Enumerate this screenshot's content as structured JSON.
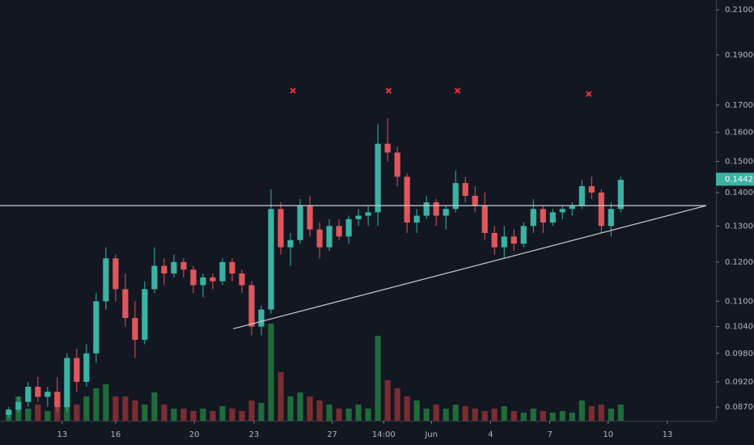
{
  "chart_data": {
    "type": "candlestick",
    "log_scale": true,
    "up_color": "#3bb3a4",
    "down_color": "#e0565c",
    "volume_up_color": "#1f6b3a",
    "volume_down_color": "#7a2d31",
    "line_color": "#c9ccd3",
    "marker_color": "#f0303a",
    "xlim": [
      -0.9,
      72.8
    ],
    "ylim": [
      0.0844,
      0.2146
    ],
    "xticks": [
      {
        "value": 5.5,
        "label": "13"
      },
      {
        "value": 11.0,
        "label": "16"
      },
      {
        "value": 19.1,
        "label": "20"
      },
      {
        "value": 25.25,
        "label": "23"
      },
      {
        "value": 33.3,
        "label": "27"
      },
      {
        "value": 38.6,
        "label": "14:00"
      },
      {
        "value": 43.5,
        "label": "Jun"
      },
      {
        "value": 49.6,
        "label": "4"
      },
      {
        "value": 55.7,
        "label": "7"
      },
      {
        "value": 61.7,
        "label": "10"
      },
      {
        "value": 67.8,
        "label": "13"
      }
    ],
    "yticks": [
      {
        "value": 0.21,
        "label": "0.21000"
      },
      {
        "value": 0.19,
        "label": "0.19000"
      },
      {
        "value": 0.17,
        "label": "0.17000"
      },
      {
        "value": 0.16,
        "label": "0.16000"
      },
      {
        "value": 0.15,
        "label": "0.15000"
      },
      {
        "value": 0.14,
        "label": "0.14000"
      },
      {
        "value": 0.13,
        "label": "0.13000"
      },
      {
        "value": 0.12,
        "label": "0.12000"
      },
      {
        "value": 0.11,
        "label": "0.11000"
      },
      {
        "value": 0.104,
        "label": "0.10400"
      },
      {
        "value": 0.098,
        "label": "0.09800"
      },
      {
        "value": 0.092,
        "label": "0.09200"
      },
      {
        "value": 0.087,
        "label": "0.08700"
      }
    ],
    "last_price": 0.14421,
    "ohlc": [
      [
        0.0855,
        0.087,
        0.085,
        0.0865
      ],
      [
        0.0865,
        0.089,
        0.086,
        0.088
      ],
      [
        0.088,
        0.092,
        0.087,
        0.091
      ],
      [
        0.091,
        0.093,
        0.088,
        0.089
      ],
      [
        0.089,
        0.091,
        0.087,
        0.09
      ],
      [
        0.09,
        0.093,
        0.086,
        0.087
      ],
      [
        0.087,
        0.098,
        0.086,
        0.097
      ],
      [
        0.097,
        0.099,
        0.09,
        0.092
      ],
      [
        0.092,
        0.1,
        0.091,
        0.098
      ],
      [
        0.098,
        0.112,
        0.096,
        0.11
      ],
      [
        0.11,
        0.124,
        0.108,
        0.121
      ],
      [
        0.121,
        0.122,
        0.11,
        0.113
      ],
      [
        0.113,
        0.117,
        0.104,
        0.106
      ],
      [
        0.106,
        0.11,
        0.097,
        0.101
      ],
      [
        0.101,
        0.115,
        0.1,
        0.113
      ],
      [
        0.113,
        0.124,
        0.112,
        0.119
      ],
      [
        0.119,
        0.121,
        0.114,
        0.117
      ],
      [
        0.117,
        0.122,
        0.116,
        0.12
      ],
      [
        0.12,
        0.121,
        0.116,
        0.118
      ],
      [
        0.118,
        0.119,
        0.112,
        0.114
      ],
      [
        0.114,
        0.117,
        0.111,
        0.116
      ],
      [
        0.116,
        0.117,
        0.113,
        0.115
      ],
      [
        0.115,
        0.121,
        0.114,
        0.12
      ],
      [
        0.12,
        0.121,
        0.115,
        0.117
      ],
      [
        0.117,
        0.118,
        0.112,
        0.114
      ],
      [
        0.114,
        0.115,
        0.102,
        0.104
      ],
      [
        0.104,
        0.109,
        0.102,
        0.108
      ],
      [
        0.108,
        0.141,
        0.107,
        0.135
      ],
      [
        0.135,
        0.137,
        0.122,
        0.124
      ],
      [
        0.124,
        0.128,
        0.119,
        0.126
      ],
      [
        0.126,
        0.138,
        0.125,
        0.136
      ],
      [
        0.136,
        0.139,
        0.127,
        0.129
      ],
      [
        0.129,
        0.131,
        0.121,
        0.124
      ],
      [
        0.124,
        0.132,
        0.123,
        0.13
      ],
      [
        0.13,
        0.132,
        0.126,
        0.127
      ],
      [
        0.127,
        0.133,
        0.125,
        0.132
      ],
      [
        0.132,
        0.135,
        0.13,
        0.133
      ],
      [
        0.133,
        0.136,
        0.13,
        0.134
      ],
      [
        0.134,
        0.163,
        0.13,
        0.156
      ],
      [
        0.156,
        0.165,
        0.15,
        0.153
      ],
      [
        0.153,
        0.155,
        0.142,
        0.145
      ],
      [
        0.145,
        0.146,
        0.128,
        0.131
      ],
      [
        0.131,
        0.135,
        0.128,
        0.133
      ],
      [
        0.133,
        0.139,
        0.132,
        0.137
      ],
      [
        0.137,
        0.138,
        0.13,
        0.133
      ],
      [
        0.133,
        0.136,
        0.129,
        0.135
      ],
      [
        0.135,
        0.147,
        0.134,
        0.143
      ],
      [
        0.143,
        0.145,
        0.137,
        0.139
      ],
      [
        0.139,
        0.142,
        0.134,
        0.136
      ],
      [
        0.136,
        0.14,
        0.126,
        0.128
      ],
      [
        0.128,
        0.13,
        0.122,
        0.124
      ],
      [
        0.124,
        0.13,
        0.121,
        0.127
      ],
      [
        0.127,
        0.129,
        0.123,
        0.125
      ],
      [
        0.125,
        0.131,
        0.124,
        0.13
      ],
      [
        0.13,
        0.138,
        0.128,
        0.135
      ],
      [
        0.135,
        0.136,
        0.128,
        0.131
      ],
      [
        0.131,
        0.135,
        0.13,
        0.134
      ],
      [
        0.134,
        0.136,
        0.132,
        0.135
      ],
      [
        0.135,
        0.137,
        0.133,
        0.136
      ],
      [
        0.136,
        0.144,
        0.135,
        0.142
      ],
      [
        0.142,
        0.145,
        0.138,
        0.14
      ],
      [
        0.14,
        0.141,
        0.128,
        0.13
      ],
      [
        0.13,
        0.137,
        0.127,
        0.135
      ],
      [
        0.135,
        0.145,
        0.134,
        0.144
      ]
    ],
    "volume": [
      10,
      30,
      15,
      20,
      12,
      35,
      25,
      20,
      30,
      40,
      45,
      30,
      30,
      25,
      20,
      35,
      20,
      15,
      15,
      12,
      15,
      12,
      18,
      15,
      12,
      25,
      22,
      120,
      60,
      30,
      35,
      30,
      25,
      20,
      15,
      15,
      20,
      15,
      105,
      50,
      40,
      30,
      25,
      15,
      20,
      15,
      20,
      18,
      15,
      12,
      15,
      18,
      12,
      10,
      15,
      12,
      10,
      12,
      10,
      25,
      18,
      20,
      15,
      20
    ],
    "horizontal_line": 0.136,
    "trendline": {
      "x": [
        23.1,
        71.8
      ],
      "y": [
        0.1035,
        0.136
      ]
    },
    "markers": {
      "x": [
        29.25,
        39.1,
        46.2,
        59.7
      ],
      "y": [
        0.1755,
        0.1755,
        0.1755,
        0.1742
      ]
    }
  }
}
